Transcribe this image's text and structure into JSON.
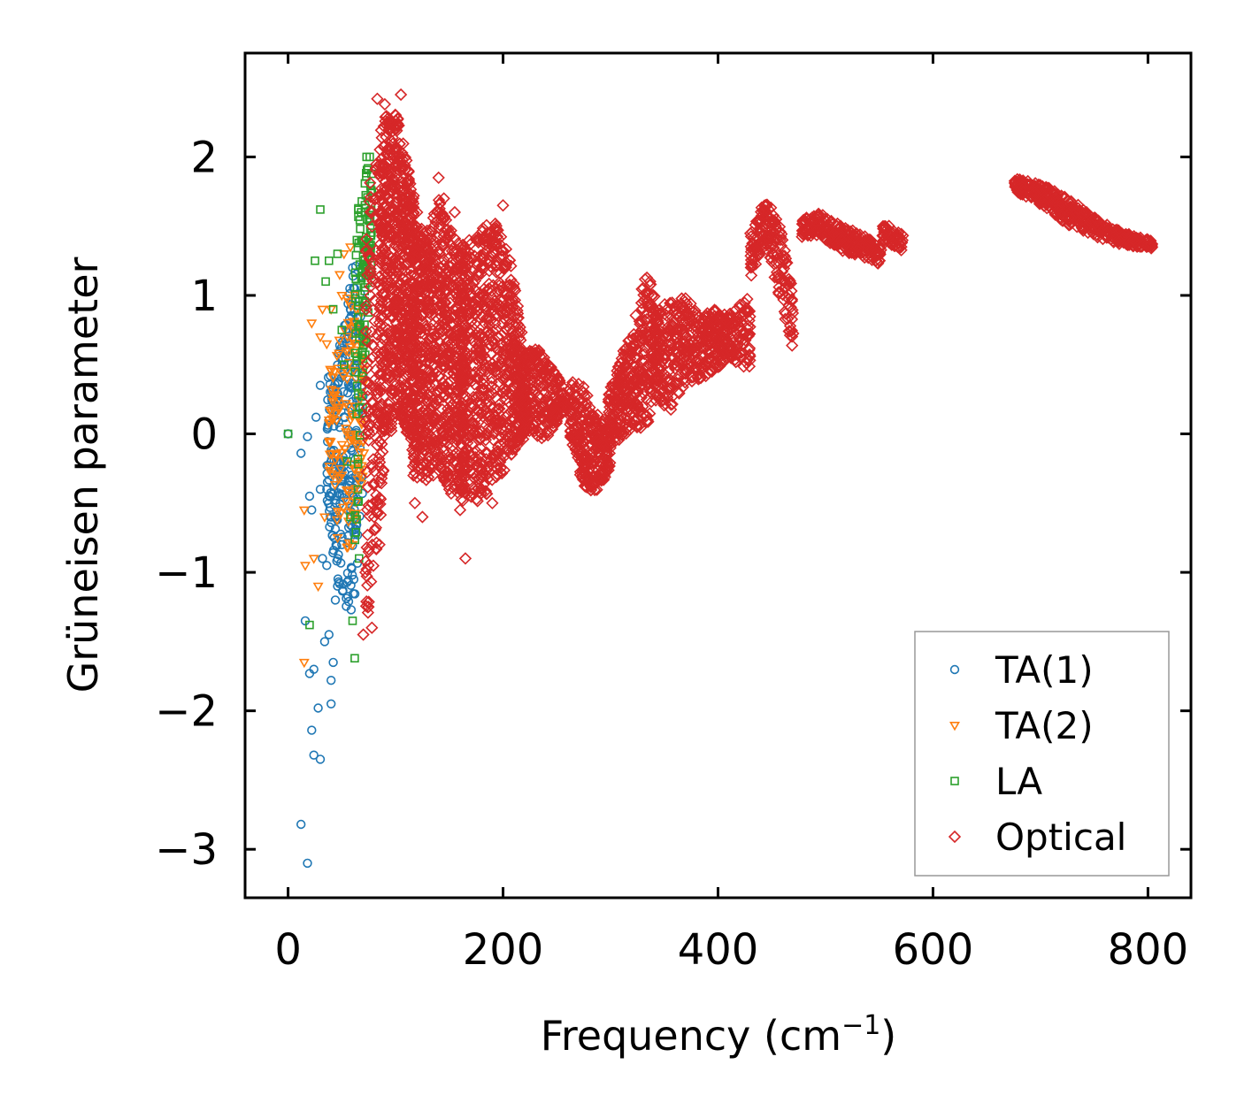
{
  "chart_data": {
    "type": "scatter",
    "xlabel": "Frequency (cm",
    "xlabel_sup": "−1",
    "xlabel_close": ")",
    "ylabel": "Grüneisen parameter",
    "xlim": [
      -40,
      840
    ],
    "ylim": [
      -3.35,
      2.75
    ],
    "xticks": [
      0,
      200,
      400,
      600,
      800
    ],
    "xtick_labels": [
      "0",
      "200",
      "400",
      "600",
      "800"
    ],
    "yticks": [
      -3,
      -2,
      -1,
      0,
      1,
      2
    ],
    "ytick_labels": [
      "−3",
      "−2",
      "−1",
      "0",
      "1",
      "2"
    ],
    "legend_position": "lower-right",
    "series": [
      {
        "name": "TA(1)",
        "marker": "circle",
        "color": "#1f77b4",
        "points": [
          [
            0,
            0
          ],
          [
            12,
            -0.14
          ],
          [
            12,
            -2.82
          ],
          [
            18,
            -3.1
          ],
          [
            20,
            -1.73
          ],
          [
            22,
            -2.14
          ],
          [
            24,
            -2.32
          ],
          [
            28,
            -1.98
          ],
          [
            30,
            -2.35
          ],
          [
            16,
            -1.35
          ],
          [
            22,
            -0.55
          ],
          [
            26,
            0.12
          ],
          [
            30,
            0.35
          ],
          [
            32,
            -0.9
          ],
          [
            34,
            -1.5
          ],
          [
            36,
            -0.4
          ],
          [
            38,
            -1.45
          ],
          [
            40,
            -1.78
          ],
          [
            42,
            -1.65
          ],
          [
            44,
            -1.2
          ],
          [
            46,
            -1.1
          ],
          [
            48,
            -0.2
          ],
          [
            50,
            -0.8
          ],
          [
            52,
            0.45
          ],
          [
            55,
            0.6
          ],
          [
            58,
            0.9
          ],
          [
            60,
            1.2
          ],
          [
            62,
            1.05
          ],
          [
            64,
            0.5
          ],
          [
            20,
            -0.45
          ],
          [
            24,
            -1.7
          ],
          [
            40,
            -1.95
          ],
          [
            44,
            -0.6
          ],
          [
            30,
            -0.4
          ],
          [
            18,
            -0.02
          ],
          [
            36,
            -0.95
          ]
        ],
        "regions": [
          {
            "x0": 36,
            "x1": 70,
            "yTop": [
              0.4,
              0.5,
              0.9,
              1.2,
              1.3
            ],
            "yBot": [
              -0.6,
              -1.0,
              -1.25,
              -1.3,
              -0.4
            ],
            "n": 260
          }
        ]
      },
      {
        "name": "TA(2)",
        "marker": "triangle",
        "color": "#ff7f0e",
        "points": [
          [
            15,
            -0.55
          ],
          [
            15,
            -1.65
          ],
          [
            16,
            -0.95
          ],
          [
            22,
            0.8
          ],
          [
            24,
            -0.9
          ],
          [
            28,
            -1.1
          ],
          [
            30,
            0.7
          ],
          [
            32,
            0.9
          ],
          [
            34,
            -0.6
          ],
          [
            36,
            0.65
          ],
          [
            38,
            0.1
          ],
          [
            42,
            -0.3
          ],
          [
            46,
            -0.75
          ],
          [
            50,
            1.0
          ],
          [
            52,
            1.3
          ],
          [
            54,
            0.6
          ],
          [
            58,
            1.35
          ],
          [
            60,
            -0.8
          ],
          [
            62,
            0.2
          ],
          [
            66,
            -0.4
          ],
          [
            68,
            0.3
          ],
          [
            48,
            1.15
          ],
          [
            40,
            0.9
          ]
        ],
        "regions": [
          {
            "x0": 38,
            "x1": 72,
            "yTop": [
              0.5,
              0.8,
              1.0,
              1.1,
              0.7
            ],
            "yBot": [
              -0.3,
              -0.7,
              -0.9,
              -0.6,
              -0.2
            ],
            "n": 140
          }
        ]
      },
      {
        "name": "LA",
        "marker": "square",
        "color": "#2ca02c",
        "points": [
          [
            0,
            0
          ],
          [
            20,
            -1.38
          ],
          [
            25,
            1.25
          ],
          [
            30,
            1.62
          ],
          [
            35,
            1.1
          ],
          [
            38,
            1.25
          ],
          [
            42,
            0.9
          ],
          [
            46,
            1.3
          ],
          [
            50,
            0.75
          ],
          [
            52,
            0.5
          ],
          [
            55,
            -0.2
          ],
          [
            58,
            -0.6
          ],
          [
            60,
            -1.35
          ],
          [
            62,
            -1.62
          ],
          [
            64,
            1.4
          ],
          [
            66,
            -0.9
          ],
          [
            68,
            1.6
          ],
          [
            70,
            1.25
          ],
          [
            73,
            2.0
          ],
          [
            76,
            2.0
          ]
        ],
        "regions": [
          {
            "x0": 62,
            "x1": 78,
            "yTop": [
              1.5,
              1.8,
              2.0,
              1.9
            ],
            "yBot": [
              -0.9,
              -0.3,
              0.6,
              1.2
            ],
            "n": 120
          }
        ]
      },
      {
        "name": "Optical",
        "marker": "diamond",
        "color": "#d62728",
        "points": [
          [
            83,
            2.42
          ],
          [
            90,
            2.38
          ],
          [
            100,
            2.3
          ],
          [
            105,
            2.45
          ],
          [
            95,
            2.2
          ],
          [
            112,
            1.9
          ],
          [
            120,
            1.6
          ],
          [
            140,
            1.85
          ],
          [
            145,
            1.7
          ],
          [
            155,
            1.6
          ],
          [
            165,
            -0.9
          ],
          [
            118,
            -0.5
          ],
          [
            125,
            -0.6
          ],
          [
            135,
            -0.3
          ],
          [
            150,
            -0.4
          ],
          [
            160,
            -0.55
          ],
          [
            170,
            -0.45
          ],
          [
            180,
            -0.3
          ],
          [
            190,
            -0.5
          ],
          [
            200,
            1.65
          ],
          [
            85,
            -0.8
          ],
          [
            78,
            -1.4
          ],
          [
            70,
            -1.45
          ],
          [
            72,
            -1.0
          ],
          [
            80,
            -0.6
          ],
          [
            210,
            0.6
          ],
          [
            215,
            -0.05
          ],
          [
            175,
            1.4
          ]
        ],
        "regions": [
          {
            "x0": 72,
            "x1": 88,
            "yTop": [
              1.5,
              1.9,
              2.05,
              2.15
            ],
            "yBot": [
              -1.45,
              -1.2,
              -0.8,
              -0.5
            ],
            "n": 160
          },
          {
            "x0": 85,
            "x1": 118,
            "yTop": [
              2.2,
              2.35,
              2.3,
              2.0,
              1.7
            ],
            "yBot": [
              -0.4,
              -0.1,
              0.2,
              0.0,
              -0.2
            ],
            "n": 700
          },
          {
            "x0": 115,
            "x1": 165,
            "yTop": [
              1.6,
              1.45,
              1.7,
              1.45,
              1.3
            ],
            "yBot": [
              -0.3,
              -0.35,
              -0.25,
              -0.45,
              -0.5
            ],
            "n": 800
          },
          {
            "x0": 160,
            "x1": 222,
            "yTop": [
              1.35,
              1.45,
              1.55,
              1.3,
              0.5
            ],
            "yBot": [
              -0.4,
              -0.5,
              -0.4,
              -0.2,
              0.0
            ],
            "n": 800
          },
          {
            "x0": 220,
            "x1": 258,
            "yTop": [
              0.6,
              0.62,
              0.5,
              0.3
            ],
            "yBot": [
              0.05,
              -0.05,
              0.0,
              0.2
            ],
            "n": 220
          },
          {
            "x0": 262,
            "x1": 300,
            "yTop": [
              0.4,
              0.35,
              0.15,
              0.05
            ],
            "yBot": [
              -0.05,
              -0.4,
              -0.42,
              -0.25
            ],
            "n": 280
          },
          {
            "x0": 298,
            "x1": 345,
            "yTop": [
              0.3,
              0.55,
              0.8,
              1.2,
              0.9
            ],
            "yBot": [
              -0.1,
              -0.05,
              0.05,
              0.0,
              0.3
            ],
            "n": 360
          },
          {
            "x0": 340,
            "x1": 398,
            "yTop": [
              0.9,
              0.95,
              1.0,
              0.85,
              0.9
            ],
            "yBot": [
              0.3,
              0.15,
              0.35,
              0.4,
              0.45
            ],
            "n": 330
          },
          {
            "x0": 398,
            "x1": 430,
            "yTop": [
              0.9,
              0.85,
              0.95,
              1.0
            ],
            "yBot": [
              0.45,
              0.55,
              0.5,
              0.45
            ],
            "n": 160
          },
          {
            "x0": 430,
            "x1": 470,
            "yTop": [
              1.45,
              1.7,
              1.55,
              1.0
            ],
            "yBot": [
              1.1,
              1.4,
              1.0,
              0.6
            ],
            "n": 180
          },
          {
            "x0": 478,
            "x1": 552,
            "yTop": [
              1.55,
              1.6,
              1.5,
              1.45,
              1.35
            ],
            "yBot": [
              1.42,
              1.42,
              1.32,
              1.28,
              1.22
            ],
            "n": 260
          },
          {
            "x0": 553,
            "x1": 572,
            "yTop": [
              1.52,
              1.5,
              1.45
            ],
            "yBot": [
              1.38,
              1.35,
              1.32
            ],
            "n": 60
          },
          {
            "x0": 676,
            "x1": 804,
            "yTop": [
              1.85,
              1.8,
              1.7,
              1.55,
              1.45,
              1.4
            ],
            "yBot": [
              1.75,
              1.65,
              1.5,
              1.42,
              1.36,
              1.34
            ],
            "n": 420
          }
        ]
      }
    ]
  }
}
